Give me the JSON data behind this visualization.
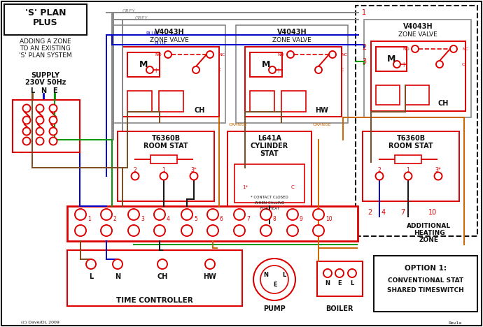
{
  "bg_color": "#ffffff",
  "RED": "#dd0000",
  "BLUE": "#0000cc",
  "GREEN": "#009900",
  "GREY": "#888888",
  "BROWN": "#7B4A1E",
  "BLACK": "#111111",
  "ORANGE": "#cc6600",
  "WHITE": "#ffffff",
  "title1": "'S' PLAN",
  "title2": "PLUS",
  "sub1": "ADDING A ZONE",
  "sub2": "TO AN EXISTING",
  "sub3": "'S' PLAN SYSTEM",
  "supply_label": "SUPPLY",
  "supply_v": "230V 50Hz",
  "lne": [
    "L",
    "N",
    "E"
  ],
  "zv1_title": "V4043H",
  "zv1_sub": "ZONE VALVE",
  "zv2_title": "V4043H",
  "zv2_sub": "ZONE VALVE",
  "zv3_title": "V4043H",
  "zv3_sub": "ZONE VALVE",
  "zv1_label": "CH",
  "zv2_label": "HW",
  "zv3_label": "CH",
  "rs1_title": "T6360B",
  "rs1_sub": "ROOM STAT",
  "cyl_title1": "L641A",
  "cyl_title2": "CYLINDER",
  "cyl_title3": "STAT",
  "rs2_title": "T6360B",
  "rs2_sub": "ROOM STAT",
  "tc_label": "TIME CONTROLLER",
  "pump_label": "PUMP",
  "boiler_label": "BOILER",
  "opt_title": "OPTION 1:",
  "opt_line1": "CONVENTIONAL STAT",
  "opt_line2": "SHARED TIMESWITCH",
  "add_label1": "ADDITIONAL",
  "add_label2": "HEATING",
  "add_label3": "ZONE",
  "terminal_nums": [
    1,
    2,
    3,
    4,
    5,
    6,
    7,
    8,
    9,
    10
  ],
  "rev": "Rev1a",
  "copy": "(c) Dave/DL 2009"
}
